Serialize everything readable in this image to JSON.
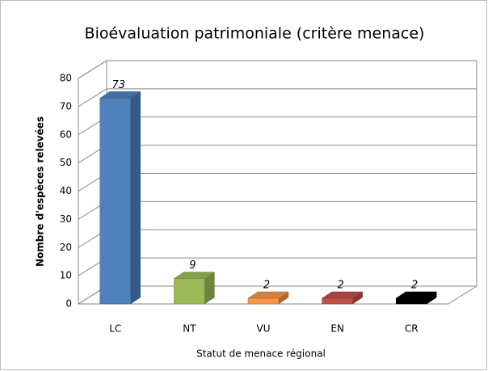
{
  "chart_data": {
    "type": "bar3d",
    "title": "Bioévaluation patrimoniale (critère menace)",
    "x_label": "Statut de menace régional",
    "y_label": "Nombre d'espèces relevées",
    "categories": [
      "LC",
      "NT",
      "VU",
      "EN",
      "CR"
    ],
    "values": [
      73,
      9,
      2,
      2,
      2
    ],
    "colors": [
      "#4f81bd",
      "#9bbb59",
      "#f79646",
      "#c0504d",
      "#000000"
    ],
    "ylim": [
      0,
      80
    ],
    "yticks": [
      0,
      10,
      20,
      30,
      40,
      50,
      60,
      70,
      80
    ],
    "grid": true
  }
}
